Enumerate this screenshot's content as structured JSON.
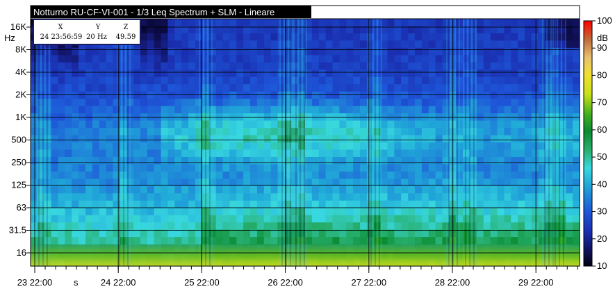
{
  "chart_data": {
    "type": "heatmap",
    "title": "Notturno RU-CF-VI-001 - 1/3 Leq Spectrum + SLM - Lineare",
    "y_unit": "Hz",
    "y_ticks": [
      "16K",
      "8K",
      "4K",
      "2K",
      "1K",
      "500",
      "250",
      "125",
      "63",
      "31.5",
      "16"
    ],
    "x_ticks": [
      "23 22:00",
      "24 22:00",
      "25 22:00",
      "26 22:00",
      "27 22:00",
      "28 22:00",
      "29 22:00"
    ],
    "x_extra_label": "s",
    "colorbar": {
      "unit": "dB",
      "ticks": [
        100,
        90,
        80,
        70,
        60,
        50,
        40,
        30,
        20,
        10
      ],
      "range": [
        10,
        100
      ]
    },
    "cursor": {
      "headers": [
        "X",
        "Y",
        "Z"
      ],
      "values": [
        "24 23:56:59",
        "20 Hz",
        "49.59"
      ]
    },
    "grid": true
  }
}
